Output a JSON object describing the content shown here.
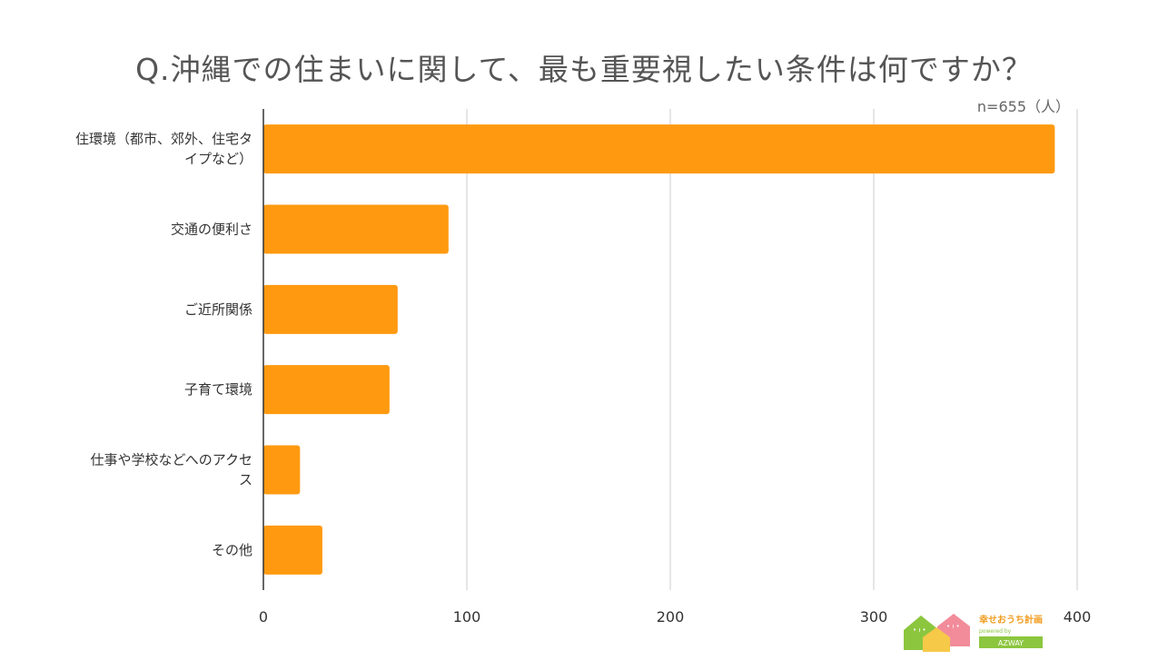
{
  "note": "n=655（人）",
  "logo": {
    "text_main": "幸せおうち計画",
    "text_sub": "powered by",
    "text_brand": "AZWAY"
  },
  "colors": {
    "bar": "#ff9a10",
    "grid": "#cccccc",
    "axis": "#333333"
  },
  "chart_data": {
    "type": "bar",
    "orientation": "horizontal",
    "title": "Q.沖縄での住まいに関して、最も重要視したい条件は何ですか？",
    "categories": [
      "住環境（都市、郊外、住宅タイプなど）",
      "交通の便利さ",
      "ご近所関係",
      "子育て環境",
      "仕事や学校などへのアクセス",
      "その他"
    ],
    "category_lines": [
      [
        "住環境（都市、郊外、住宅タ",
        "イプなど）"
      ],
      [
        "交通の便利さ"
      ],
      [
        "ご近所関係"
      ],
      [
        "子育て環境"
      ],
      [
        "仕事や学校などへのアクセ",
        "ス"
      ],
      [
        "その他"
      ]
    ],
    "values": [
      389,
      91,
      66,
      62,
      18,
      29
    ],
    "xlim": [
      0,
      400
    ],
    "xticks": [
      0,
      100,
      200,
      300,
      400
    ],
    "xtick_labels": [
      "0",
      "100",
      "200",
      "300",
      "400"
    ],
    "grid": true,
    "xlabel": "",
    "ylabel": ""
  }
}
